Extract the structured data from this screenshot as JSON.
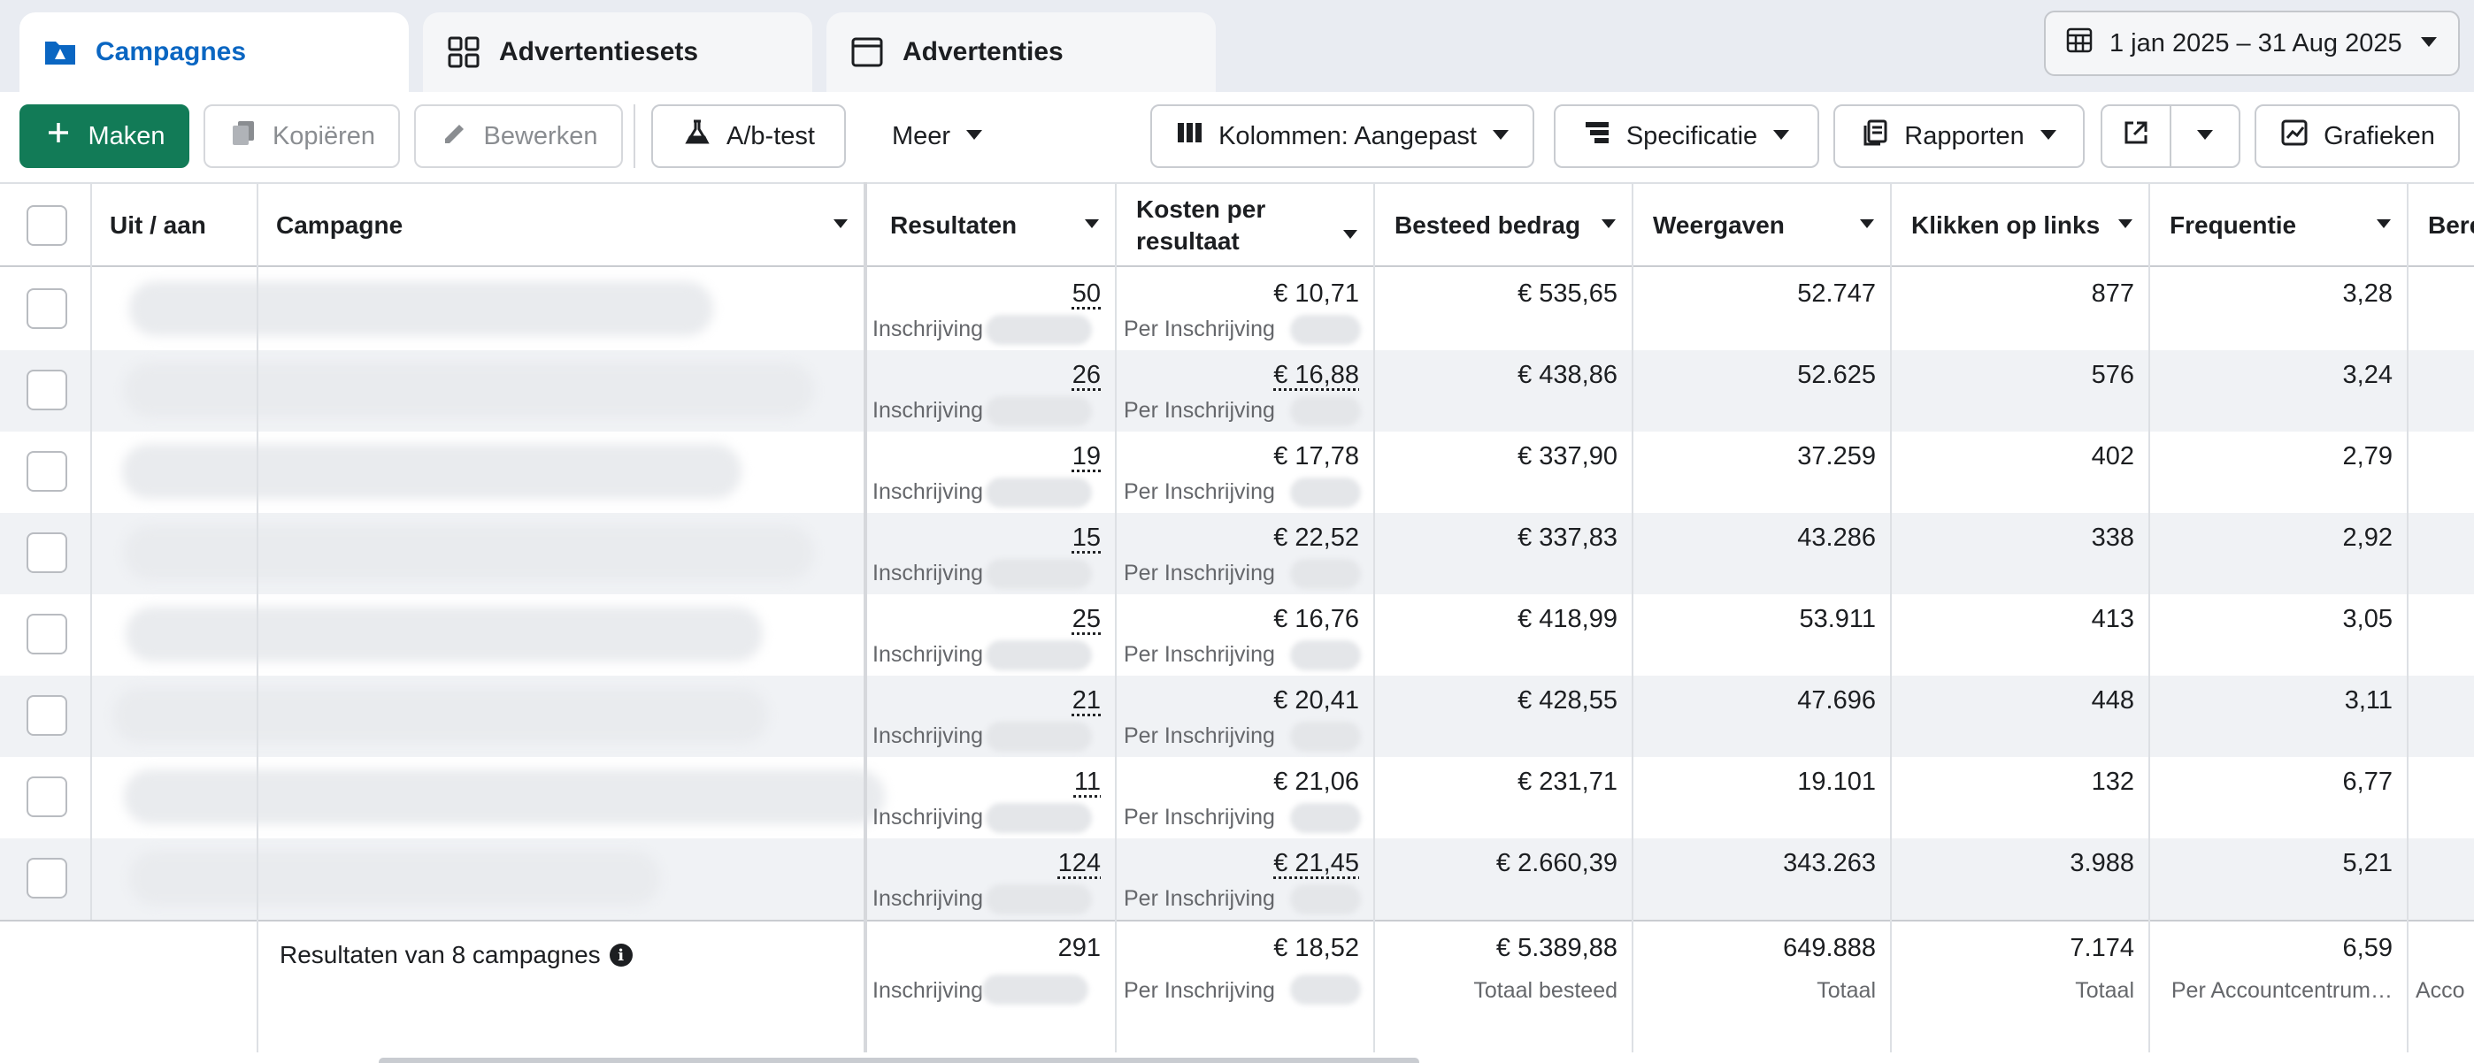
{
  "tabs": [
    {
      "label": "Campagnes",
      "icon": "folder-icon",
      "active": true
    },
    {
      "label": "Advertentiesets",
      "icon": "grid-icon",
      "active": false
    },
    {
      "label": "Advertenties",
      "icon": "ad-window-icon",
      "active": false
    }
  ],
  "date_range": "1 jan 2025 – 31 Aug 2025",
  "toolbar": {
    "create": "Maken",
    "copy": "Kopiëren",
    "edit": "Bewerken",
    "ab_test": "A/b-test",
    "more": "Meer",
    "columns": "Kolommen: Aangepast",
    "breakdown": "Specificatie",
    "reports": "Rapporten",
    "charts": "Grafieken"
  },
  "columns": {
    "toggle": "Uit / aan",
    "campaign": "Campagne",
    "results": "Resultaten",
    "cost_per_result": "Kosten per resultaat",
    "amount_spent": "Besteed bedrag",
    "impressions": "Weergaven",
    "link_clicks": "Klikken op links",
    "frequency": "Frequentie",
    "reach_partial": "Bere"
  },
  "result_type": "Inschrijving",
  "cost_type": "Per Inschrijving",
  "rows": [
    {
      "results": "50",
      "cost": "€ 10,71",
      "spent": "€ 535,65",
      "impressions": "52.747",
      "clicks": "877",
      "frequency": "3,28",
      "cost_dotted": false
    },
    {
      "results": "26",
      "cost": "€ 16,88",
      "spent": "€ 438,86",
      "impressions": "52.625",
      "clicks": "576",
      "frequency": "3,24",
      "cost_dotted": true
    },
    {
      "results": "19",
      "cost": "€ 17,78",
      "spent": "€ 337,90",
      "impressions": "37.259",
      "clicks": "402",
      "frequency": "2,79",
      "cost_dotted": false
    },
    {
      "results": "15",
      "cost": "€ 22,52",
      "spent": "€ 337,83",
      "impressions": "43.286",
      "clicks": "338",
      "frequency": "2,92",
      "cost_dotted": false
    },
    {
      "results": "25",
      "cost": "€ 16,76",
      "spent": "€ 418,99",
      "impressions": "53.911",
      "clicks": "413",
      "frequency": "3,05",
      "cost_dotted": false
    },
    {
      "results": "21",
      "cost": "€ 20,41",
      "spent": "€ 428,55",
      "impressions": "47.696",
      "clicks": "448",
      "frequency": "3,11",
      "cost_dotted": false
    },
    {
      "results": "11",
      "cost": "€ 21,06",
      "spent": "€ 231,71",
      "impressions": "19.101",
      "clicks": "132",
      "frequency": "6,77",
      "cost_dotted": false
    },
    {
      "results": "124",
      "cost": "€ 21,45",
      "spent": "€ 2.660,39",
      "impressions": "343.263",
      "clicks": "3.988",
      "frequency": "5,21",
      "cost_dotted": true
    }
  ],
  "totals": {
    "label": "Resultaten van 8 campagnes",
    "results": "291",
    "results_sub": "Inschrijving",
    "cost": "€ 18,52",
    "cost_sub": "Per Inschrijving",
    "spent": "€ 5.389,88",
    "spent_sub": "Totaal besteed",
    "impressions": "649.888",
    "impressions_sub": "Totaal",
    "clicks": "7.174",
    "clicks_sub": "Totaal",
    "frequency": "6,59",
    "frequency_sub": "Per Accountcentrum…",
    "reach_sub_partial": "Acco"
  },
  "colors": {
    "accent_blue": "#0a66c2",
    "create_green": "#127b57"
  }
}
